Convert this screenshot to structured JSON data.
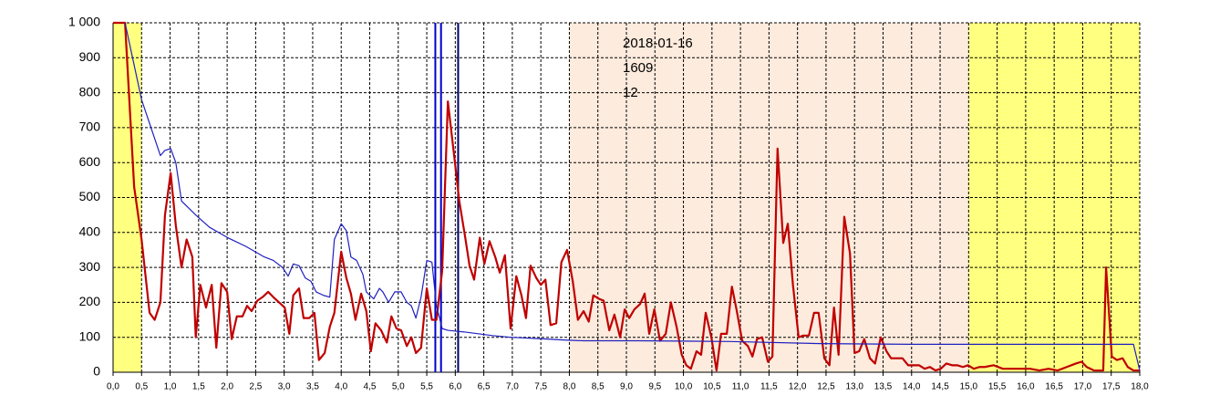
{
  "chart_data": {
    "type": "line",
    "annotations": [
      "2018-01-16",
      "1609",
      "12"
    ],
    "bands": [
      {
        "from": 0,
        "to": 0.5,
        "color": "#ffff80"
      },
      {
        "from": 8,
        "to": 15,
        "color": "#fdebdd"
      },
      {
        "from": 15,
        "to": 18,
        "color": "#ffff80"
      }
    ],
    "vlines": [
      {
        "x": 5.65,
        "color": "#0000cc"
      },
      {
        "x": 5.75,
        "color": "#0000cc"
      },
      {
        "x": 6.05,
        "color": "#000066"
      }
    ],
    "series": [
      {
        "color": "#c00000",
        "width": 2.2,
        "x": [
          0,
          0.21,
          0.37,
          0.5,
          0.64,
          0.73,
          0.83,
          0.91,
          1.01,
          1.1,
          1.2,
          1.29,
          1.39,
          1.45,
          1.53,
          1.63,
          1.73,
          1.81,
          1.9,
          2.0,
          2.08,
          2.17,
          2.27,
          2.35,
          2.43,
          2.53,
          2.62,
          2.72,
          2.81,
          2.91,
          3.01,
          3.09,
          3.16,
          3.26,
          3.34,
          3.44,
          3.53,
          3.61,
          3.71,
          3.8,
          3.88,
          4.0,
          4.09,
          4.17,
          4.25,
          4.35,
          4.44,
          4.52,
          4.6,
          4.7,
          4.8,
          4.88,
          4.97,
          5.05,
          5.15,
          5.23,
          5.31,
          5.4,
          5.5,
          5.59,
          5.67,
          5.77,
          5.87,
          5.98,
          6.07,
          6.17,
          6.25,
          6.33,
          6.43,
          6.51,
          6.6,
          6.7,
          6.78,
          6.87,
          6.97,
          7.07,
          7.16,
          7.24,
          7.32,
          7.42,
          7.5,
          7.58,
          7.67,
          7.77,
          7.86,
          7.96,
          8.06,
          8.15,
          8.25,
          8.34,
          8.42,
          8.52,
          8.6,
          8.7,
          8.79,
          8.89,
          8.97,
          9.05,
          9.14,
          9.24,
          9.32,
          9.4,
          9.49,
          9.59,
          9.69,
          9.78,
          9.88,
          9.97,
          10.05,
          10.13,
          10.23,
          10.31,
          10.39,
          10.49,
          10.58,
          10.66,
          10.76,
          10.85,
          10.93,
          11.03,
          11.13,
          11.21,
          11.29,
          11.38,
          11.48,
          11.56,
          11.65,
          11.75,
          11.83,
          11.92,
          12.02,
          12.1,
          12.2,
          12.29,
          12.37,
          12.47,
          12.56,
          12.64,
          12.72,
          12.82,
          12.92,
          13.0,
          13.08,
          13.17,
          13.27,
          13.36,
          13.46,
          13.56,
          13.64,
          13.73,
          13.84,
          13.94,
          14.03,
          14.13,
          14.23,
          14.32,
          14.42,
          14.51,
          14.61,
          14.71,
          14.8,
          14.9,
          14.99,
          15.09,
          15.19,
          15.28,
          15.44,
          15.6,
          15.76,
          15.92,
          16.08,
          16.24,
          16.4,
          16.56,
          16.72,
          16.88,
          16.98,
          17.07,
          17.2,
          17.36,
          17.41,
          17.51,
          17.6,
          17.7,
          17.79,
          17.89,
          18.0
        ],
        "values": [
          1000,
          1000,
          530,
          380,
          170,
          150,
          200,
          450,
          570,
          420,
          300,
          380,
          330,
          100,
          250,
          185,
          250,
          70,
          255,
          230,
          95,
          160,
          160,
          190,
          175,
          205,
          215,
          230,
          215,
          200,
          185,
          110,
          220,
          240,
          155,
          155,
          170,
          35,
          55,
          130,
          170,
          345,
          270,
          225,
          150,
          225,
          175,
          60,
          140,
          120,
          85,
          160,
          125,
          120,
          75,
          100,
          55,
          70,
          240,
          150,
          150,
          290,
          775,
          620,
          490,
          390,
          305,
          265,
          385,
          310,
          375,
          330,
          285,
          335,
          125,
          275,
          220,
          155,
          305,
          270,
          250,
          265,
          135,
          140,
          315,
          350,
          260,
          150,
          175,
          145,
          220,
          210,
          205,
          120,
          165,
          100,
          180,
          155,
          180,
          195,
          225,
          110,
          180,
          90,
          110,
          200,
          130,
          50,
          20,
          10,
          60,
          50,
          170,
          100,
          5,
          110,
          110,
          245,
          180,
          90,
          75,
          45,
          95,
          100,
          30,
          45,
          640,
          370,
          425,
          250,
          100,
          105,
          105,
          170,
          170,
          40,
          20,
          185,
          50,
          445,
          340,
          55,
          60,
          95,
          40,
          25,
          100,
          60,
          40,
          40,
          40,
          20,
          20,
          20,
          10,
          15,
          5,
          10,
          25,
          20,
          20,
          15,
          20,
          10,
          15,
          15,
          20,
          10,
          10,
          10,
          10,
          5,
          10,
          5,
          15,
          25,
          30,
          15,
          5,
          5,
          300,
          45,
          35,
          40,
          15,
          5,
          5
        ]
      },
      {
        "color": "#2020c0",
        "width": 1.2,
        "x": [
          0.21,
          0.5,
          0.83,
          0.91,
          1.01,
          1.1,
          1.2,
          1.45,
          1.69,
          2.01,
          2.33,
          2.65,
          2.81,
          2.97,
          3.07,
          3.16,
          3.26,
          3.37,
          3.47,
          3.56,
          3.69,
          3.8,
          3.88,
          4.0,
          4.09,
          4.17,
          4.27,
          4.38,
          4.44,
          4.57,
          4.67,
          4.73,
          4.83,
          4.94,
          5.05,
          5.15,
          5.23,
          5.31,
          5.4,
          5.5,
          5.59,
          5.67,
          5.77,
          5.87,
          6.17,
          6.65,
          6.97,
          7.61,
          7.93,
          8.25,
          9.21,
          10.81,
          12.4,
          14.0,
          15.6,
          17.2,
          17.89,
          18.0
        ],
        "values": [
          1000,
          780,
          620,
          635,
          640,
          600,
          490,
          450,
          415,
          385,
          360,
          330,
          320,
          300,
          275,
          310,
          305,
          270,
          260,
          230,
          220,
          215,
          380,
          425,
          405,
          330,
          320,
          280,
          230,
          210,
          240,
          230,
          200,
          230,
          230,
          200,
          190,
          155,
          215,
          320,
          315,
          190,
          125,
          120,
          115,
          105,
          100,
          95,
          92,
          90,
          90,
          88,
          82,
          80,
          80,
          80,
          80,
          5
        ]
      }
    ],
    "xlim": [
      0,
      18
    ],
    "ylim": [
      0,
      1000
    ],
    "xticks": [
      {
        "value": 0,
        "label": "0,0"
      },
      {
        "value": 0.5,
        "label": "0,5"
      },
      {
        "value": 1,
        "label": "1,0"
      },
      {
        "value": 1.5,
        "label": "1,5"
      },
      {
        "value": 2,
        "label": "2,0"
      },
      {
        "value": 2.5,
        "label": "2,5"
      },
      {
        "value": 3,
        "label": "3,0"
      },
      {
        "value": 3.5,
        "label": "3,5"
      },
      {
        "value": 4,
        "label": "4,0"
      },
      {
        "value": 4.5,
        "label": "4,5"
      },
      {
        "value": 5,
        "label": "5,0"
      },
      {
        "value": 5.5,
        "label": "5,5"
      },
      {
        "value": 6,
        "label": "6,0"
      },
      {
        "value": 6.5,
        "label": "6,5"
      },
      {
        "value": 7,
        "label": "7,0"
      },
      {
        "value": 7.5,
        "label": "7,5"
      },
      {
        "value": 8,
        "label": "8,0"
      },
      {
        "value": 8.5,
        "label": "8,5"
      },
      {
        "value": 9,
        "label": "9,0"
      },
      {
        "value": 9.5,
        "label": "9,5"
      },
      {
        "value": 10,
        "label": "10,0"
      },
      {
        "value": 10.5,
        "label": "10,5"
      },
      {
        "value": 11,
        "label": "11,0"
      },
      {
        "value": 11.5,
        "label": "11,5"
      },
      {
        "value": 12,
        "label": "12,0"
      },
      {
        "value": 12.5,
        "label": "12,5"
      },
      {
        "value": 13,
        "label": "13,0"
      },
      {
        "value": 13.5,
        "label": "13,5"
      },
      {
        "value": 14,
        "label": "14,0"
      },
      {
        "value": 14.5,
        "label": "14,5"
      },
      {
        "value": 15,
        "label": "15,0"
      },
      {
        "value": 15.5,
        "label": "15,5"
      },
      {
        "value": 16,
        "label": "16,0"
      },
      {
        "value": 16.5,
        "label": "16,5"
      },
      {
        "value": 17,
        "label": "17,0"
      },
      {
        "value": 17.5,
        "label": "17,5"
      },
      {
        "value": 18,
        "label": "18,0"
      }
    ],
    "yticks": [
      0,
      100,
      200,
      300,
      400,
      500,
      600,
      700,
      800,
      900,
      {
        "value": 1000,
        "label": "1 000"
      }
    ],
    "grid": true
  }
}
